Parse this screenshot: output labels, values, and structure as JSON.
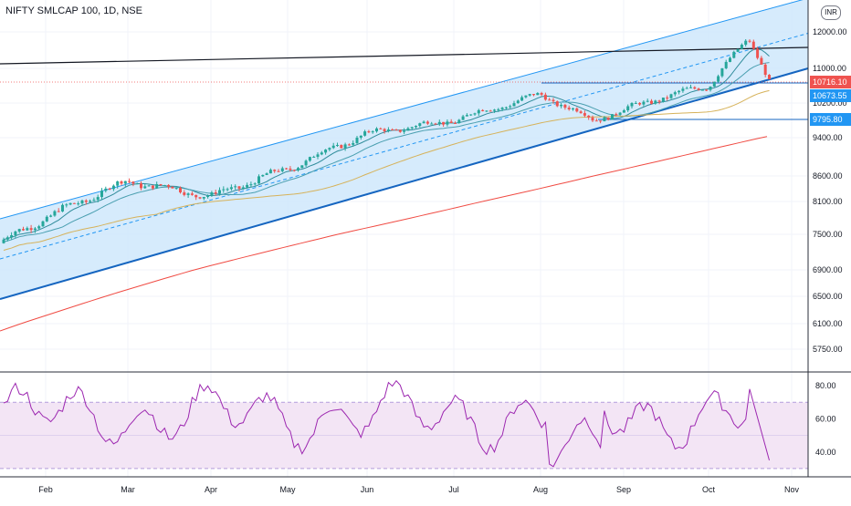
{
  "header": {
    "title": "NIFTY SMLCAP 100, 1D, NSE",
    "currency": "INR"
  },
  "colors": {
    "up": "#26a69a",
    "down": "#ef5350",
    "channel_fill": "#cfe8fb",
    "channel_line": "#2196f3",
    "ema_fast": "#2e8b9a",
    "ema_slow": "#4a9fb0",
    "sma_mid": "#d6b25a",
    "sma_long": "#f04b43",
    "resistance": "#131722",
    "rsi_line": "#9c27b0",
    "rsi_band": "#f3e5f5"
  },
  "chart_data": [
    {
      "type": "candlestick",
      "name": "price",
      "x": [
        "Feb",
        "Mar",
        "Apr",
        "May",
        "Jun",
        "Jul",
        "Aug",
        "Sep",
        "Oct",
        "Nov"
      ],
      "y_ticks": [
        5750,
        6100,
        6500,
        6900,
        7500,
        8100,
        8600,
        9400,
        10200,
        11000,
        12000
      ],
      "y_tick_labels": [
        "5750.00",
        "6100.00",
        "6500.00",
        "6900.00",
        "7500.00",
        "8100.00",
        "8600.00",
        "9400.00",
        "10200.00",
        "11000.00",
        "12000.00"
      ],
      "price_labels": [
        {
          "value": "10716.10",
          "color": "#ef5350"
        },
        {
          "value": "10673.55",
          "color": "#2196f3"
        },
        {
          "value": "9795.80",
          "color": "#2196f3"
        }
      ],
      "approx_close_path": [
        {
          "t": "Jan end",
          "close": 7350
        },
        {
          "t": "Feb mid",
          "close": 7800
        },
        {
          "t": "Mar start",
          "close": 8500
        },
        {
          "t": "Apr start",
          "close": 8200
        },
        {
          "t": "May start",
          "close": 8750
        },
        {
          "t": "Jun start",
          "close": 9500
        },
        {
          "t": "Jul start",
          "close": 9800
        },
        {
          "t": "Aug start",
          "close": 10400
        },
        {
          "t": "Aug end",
          "close": 9800
        },
        {
          "t": "Sep mid",
          "close": 10300
        },
        {
          "t": "Oct start",
          "close": 10600
        },
        {
          "t": "Oct mid",
          "close": 11800
        },
        {
          "t": "Oct end",
          "close": 10716
        }
      ]
    },
    {
      "type": "line",
      "name": "RSI",
      "y_ticks": [
        40,
        60,
        80
      ],
      "y_tick_labels": [
        "40.00",
        "60.00",
        "80.00"
      ],
      "band": [
        30,
        70
      ]
    }
  ]
}
